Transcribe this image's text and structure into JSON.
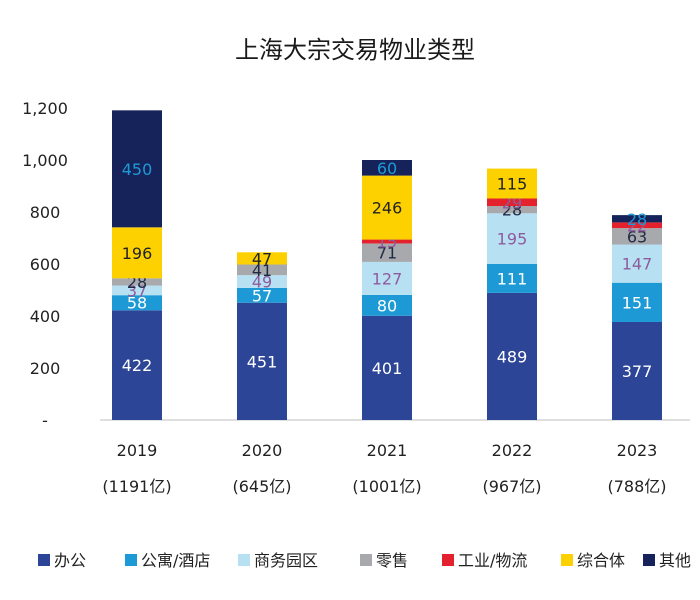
{
  "chart_data": {
    "type": "bar",
    "stacked": true,
    "title": "上海大宗交易物业类型",
    "categories": [
      "2019",
      "2020",
      "2021",
      "2022",
      "2023"
    ],
    "category_sublabels": [
      "(1191亿)",
      "(645亿)",
      "(1001亿)",
      "(967亿)",
      "(788亿)"
    ],
    "y_ticks": [
      "-",
      "200",
      "400",
      "600",
      "800",
      "1,000",
      "1,200"
    ],
    "ylim": [
      0,
      1200
    ],
    "grid": false,
    "legend_position": "bottom",
    "series": [
      {
        "name": "办公",
        "color": "#2d4597",
        "label_color": "#ffffff",
        "values": [
          422,
          451,
          401,
          489,
          377
        ],
        "labels": [
          "422",
          "451",
          "401",
          "489",
          "377"
        ]
      },
      {
        "name": "公寓/酒店",
        "color": "#1d9ad6",
        "label_color": "#ffffff",
        "values": [
          58,
          57,
          80,
          111,
          151
        ],
        "labels": [
          "58",
          "57",
          "80",
          "111",
          "151"
        ]
      },
      {
        "name": "商务园区",
        "color": "#b7e0f3",
        "label_color": "#8e5b9c",
        "values": [
          37,
          49,
          127,
          195,
          147
        ],
        "labels": [
          "37",
          "49",
          "127",
          "195",
          "147"
        ]
      },
      {
        "name": "零售",
        "color": "#a7a9ac",
        "label_color": "#1f2a44",
        "values": [
          28,
          41,
          71,
          28,
          63
        ],
        "labels": [
          "28",
          "41",
          "71",
          "28",
          "63"
        ]
      },
      {
        "name": "工业/物流",
        "color": "#e3222d",
        "label_color": "#8e5b9c",
        "values": [
          0,
          0,
          15,
          29,
          22
        ],
        "labels": [
          "",
          "",
          "15",
          "29",
          "22"
        ]
      },
      {
        "name": "综合体",
        "color": "#fdd100",
        "label_color": "#222222",
        "values": [
          196,
          47,
          246,
          115,
          0
        ],
        "labels": [
          "196",
          "47",
          "246",
          "115",
          ""
        ]
      },
      {
        "name": "其他",
        "color": "#16235a",
        "label_color": "#1d9ad6",
        "values": [
          450,
          0,
          60,
          0,
          28
        ],
        "labels": [
          "450",
          "",
          "60",
          "",
          "28"
        ]
      }
    ]
  }
}
